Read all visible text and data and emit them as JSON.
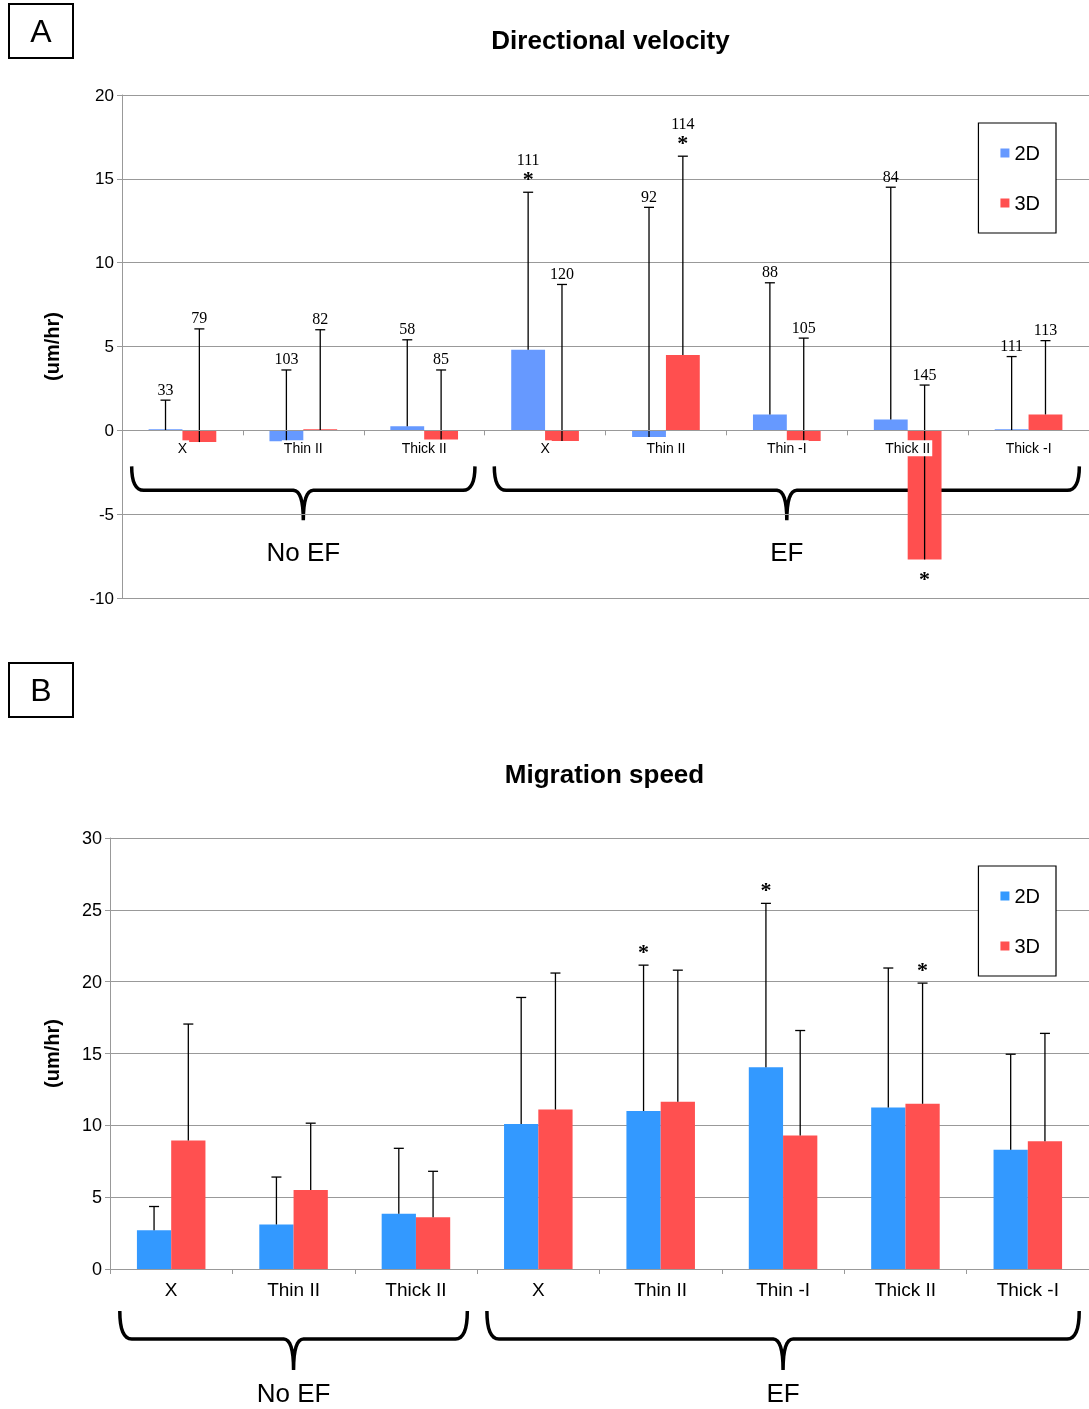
{
  "chart_data": [
    {
      "type": "bar",
      "title": "Directional velocity",
      "ylabel": "(um/hr)",
      "categories": [
        "X",
        "Thin II",
        "Thick II",
        "X",
        "Thin II",
        "Thin -I",
        "Thick II",
        "Thick -I"
      ],
      "series": [
        {
          "name": "2D",
          "color": "#6699ff",
          "values": [
            0,
            -0.65,
            0.25,
            4.8,
            -0.4,
            0.95,
            0.65,
            0
          ],
          "errors": [
            [
              0,
              1.8
            ],
            [
              -0.65,
              3.6
            ],
            [
              0.25,
              5.4
            ],
            [
              4.8,
              14.2
            ],
            [
              -0.4,
              13.3
            ],
            [
              0.95,
              8.8
            ],
            [
              0.65,
              14.5
            ],
            [
              0,
              4.4
            ]
          ]
        },
        {
          "name": "3D",
          "color": "#ff4f4f",
          "values": [
            -0.7,
            0,
            -0.55,
            -0.63,
            4.5,
            -0.63,
            -7.7,
            0.95
          ],
          "errors": [
            [
              -0.7,
              6.05
            ],
            [
              0,
              6.0
            ],
            [
              -0.55,
              3.6
            ],
            [
              -0.63,
              8.7
            ],
            [
              4.5,
              16.35
            ],
            [
              -0.63,
              5.5
            ],
            [
              -7.7,
              2.7
            ],
            [
              0.95,
              5.35
            ]
          ]
        }
      ],
      "ylim": [
        -10,
        20
      ],
      "yticks": [
        -10,
        -5,
        0,
        5,
        10,
        15,
        20
      ],
      "grid": "y",
      "legend": "top right",
      "annotations": [
        "A",
        "No EF",
        "EF",
        "33",
        "103",
        "58",
        "111",
        "92",
        "88",
        "84",
        "111",
        "79",
        "82",
        "85",
        "120",
        "114",
        "105",
        "145",
        "113",
        "*",
        "*",
        "*"
      ]
    },
    {
      "type": "bar",
      "title": "Migration speed",
      "ylabel": "(um/hr)",
      "categories": [
        "X",
        "Thin II",
        "Thick II",
        "X",
        "Thin II",
        "Thin -I",
        "Thick II",
        "Thick -I"
      ],
      "series": [
        {
          "name": "2D",
          "color": "#3399ff",
          "values": [
            2.7,
            3.1,
            3.85,
            10.1,
            11.0,
            14.05,
            11.25,
            8.3
          ],
          "errors": [
            [
              2.7,
              4.35
            ],
            [
              3.1,
              6.4
            ],
            [
              3.85,
              8.4
            ],
            [
              10.1,
              18.9
            ],
            [
              11.0,
              21.15
            ],
            [
              14.05,
              25.45
            ],
            [
              11.25,
              20.95
            ],
            [
              8.3,
              14.95
            ]
          ]
        },
        {
          "name": "3D",
          "color": "#ff5050",
          "values": [
            8.95,
            5.5,
            3.6,
            11.1,
            11.65,
            9.3,
            11.5,
            8.9
          ],
          "errors": [
            [
              8.95,
              17.05
            ],
            [
              5.5,
              10.15
            ],
            [
              3.6,
              6.8
            ],
            [
              11.1,
              20.6
            ],
            [
              11.65,
              20.8
            ],
            [
              9.3,
              16.6
            ],
            [
              11.5,
              19.9
            ],
            [
              8.9,
              16.4
            ]
          ]
        }
      ],
      "ylim": [
        0,
        30
      ],
      "yticks": [
        0,
        5,
        10,
        15,
        20,
        25,
        30
      ],
      "grid": "y",
      "legend": "top right",
      "annotations": [
        "B",
        "No EF",
        "EF",
        "*",
        "*",
        "*"
      ]
    }
  ]
}
